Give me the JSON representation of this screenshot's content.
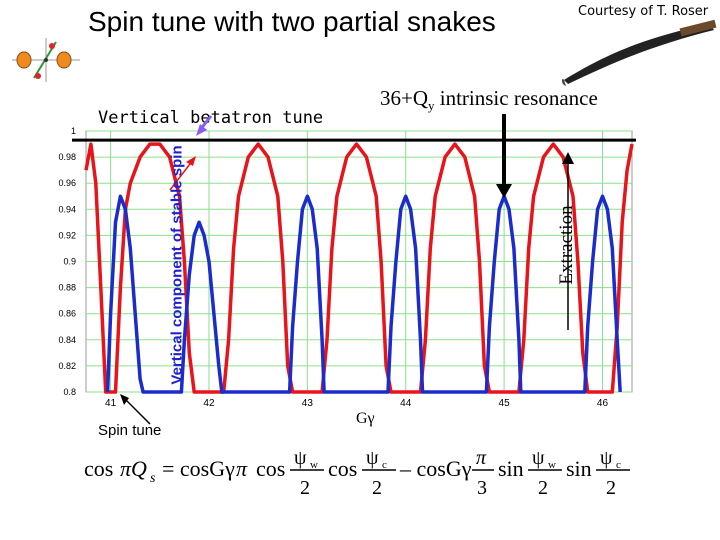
{
  "header": {
    "title": "Spin tune with two partial snakes",
    "courtesy": "Courtesy of T. Roser"
  },
  "annotations": {
    "vertical_betatron_tune": "Vertical betatron tune",
    "intrinsic_resonance_prefix": "36+Q",
    "intrinsic_resonance_sub": "y",
    "intrinsic_resonance_suffix": " intrinsic resonance",
    "extraction": "Extraction",
    "spin_tune": "Spin tune"
  },
  "formula": {
    "lhs_cos": "cos",
    "lhs_pi_q": "πQ",
    "lhs_sub": "s",
    "eq": "= cosGγ",
    "pi": "π",
    "term1_cos1": "cos",
    "psi_w": "ψ",
    "sub_w": "w",
    "two": "2",
    "term1_cos2": "cos",
    "psi_c": "ψ",
    "sub_c": "c",
    "minus": "– cosGγ",
    "three": "3",
    "sin1": "sin",
    "sin2": "sin"
  },
  "colors": {
    "red_curve": "#e8141c",
    "blue_curve": "#1c2ccc",
    "grid": "#8ce08c",
    "purple_arrow": "#8a5cf0"
  },
  "chart_data": {
    "type": "line",
    "xlabel": "Gγ",
    "ylabel": "Vertical component of stable spin",
    "xlim": [
      40.75,
      46.3
    ],
    "ylim": [
      0.8,
      1.0
    ],
    "xticks": [
      41,
      42,
      43,
      44,
      45,
      46
    ],
    "yticks": [
      0.8,
      0.82,
      0.84,
      0.86,
      0.88,
      0.9,
      0.92,
      0.94,
      0.96,
      0.98,
      1
    ],
    "ytick_labels": [
      "0.8",
      "0.82",
      "0.84",
      "0.86",
      "0.88",
      "0.9",
      "0.92",
      "0.94",
      "0.96",
      "0.98",
      "1"
    ],
    "grid": true,
    "horizontal_line_y": 0.993,
    "series": [
      {
        "color": "red",
        "x": [
          40.75,
          40.8,
          40.85,
          40.9,
          40.95,
          41.0,
          41.05,
          41.1,
          41.15,
          41.2,
          41.3,
          41.4,
          41.5,
          41.6,
          41.7,
          41.75,
          41.8,
          41.85,
          41.9,
          42.0,
          42.1,
          42.15,
          42.2,
          42.25,
          42.3,
          42.4,
          42.5,
          42.6,
          42.7,
          42.75,
          42.8,
          42.85,
          42.9,
          43.0,
          43.1,
          43.15,
          43.2,
          43.25,
          43.3,
          43.4,
          43.5,
          43.6,
          43.7,
          43.75,
          43.8,
          43.85,
          43.9,
          44.0,
          44.1,
          44.15,
          44.2,
          44.25,
          44.3,
          44.4,
          44.5,
          44.6,
          44.7,
          44.75,
          44.8,
          44.85,
          44.9,
          45.0,
          45.1,
          45.15,
          45.2,
          45.25,
          45.3,
          45.4,
          45.5,
          45.6,
          45.7,
          45.75,
          45.8,
          45.85,
          45.9,
          46.0,
          46.1,
          46.15,
          46.2,
          46.25,
          46.3
        ],
        "y": [
          0.97,
          0.99,
          0.96,
          0.88,
          0.8,
          0.8,
          0.8,
          0.88,
          0.94,
          0.96,
          0.98,
          0.99,
          0.99,
          0.98,
          0.95,
          0.9,
          0.83,
          0.8,
          0.8,
          0.8,
          0.8,
          0.8,
          0.84,
          0.91,
          0.95,
          0.98,
          0.99,
          0.98,
          0.95,
          0.9,
          0.82,
          0.8,
          0.8,
          0.8,
          0.8,
          0.8,
          0.84,
          0.91,
          0.95,
          0.98,
          0.99,
          0.98,
          0.95,
          0.9,
          0.82,
          0.8,
          0.8,
          0.8,
          0.8,
          0.8,
          0.84,
          0.91,
          0.95,
          0.98,
          0.99,
          0.98,
          0.95,
          0.9,
          0.82,
          0.8,
          0.8,
          0.8,
          0.8,
          0.8,
          0.84,
          0.91,
          0.95,
          0.98,
          0.99,
          0.98,
          0.95,
          0.9,
          0.83,
          0.8,
          0.8,
          0.8,
          0.8,
          0.85,
          0.93,
          0.97,
          0.99
        ]
      },
      {
        "color": "blue",
        "x": [
          40.97,
          41.0,
          41.05,
          41.1,
          41.15,
          41.2,
          41.25,
          41.3,
          41.33,
          41.72,
          41.75,
          41.8,
          41.85,
          41.9,
          41.95,
          42.0,
          42.05,
          42.1,
          42.13,
          42.82,
          42.85,
          42.9,
          42.95,
          43.0,
          43.05,
          43.1,
          43.15,
          43.17,
          43.82,
          43.85,
          43.9,
          43.95,
          44.0,
          44.05,
          44.1,
          44.15,
          44.17,
          44.82,
          44.85,
          44.9,
          44.95,
          45.0,
          45.05,
          45.1,
          45.15,
          45.17,
          45.82,
          45.85,
          45.9,
          45.95,
          46.0,
          46.05,
          46.1,
          46.15,
          46.18
        ],
        "y": [
          0.8,
          0.86,
          0.93,
          0.95,
          0.94,
          0.91,
          0.86,
          0.81,
          0.8,
          0.8,
          0.84,
          0.89,
          0.92,
          0.93,
          0.92,
          0.9,
          0.86,
          0.82,
          0.8,
          0.8,
          0.85,
          0.9,
          0.94,
          0.95,
          0.94,
          0.91,
          0.84,
          0.8,
          0.8,
          0.85,
          0.9,
          0.94,
          0.95,
          0.94,
          0.91,
          0.84,
          0.8,
          0.8,
          0.85,
          0.9,
          0.94,
          0.95,
          0.94,
          0.91,
          0.84,
          0.8,
          0.8,
          0.85,
          0.9,
          0.94,
          0.95,
          0.94,
          0.91,
          0.84,
          0.8
        ]
      }
    ]
  }
}
